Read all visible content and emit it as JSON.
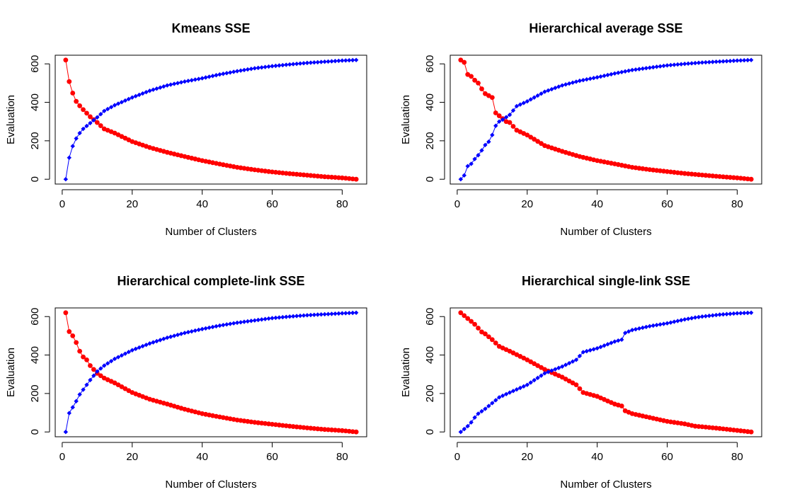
{
  "colors": {
    "series_a": "#ff0000",
    "series_b": "#0000ff",
    "axes": "#000000",
    "background": "#ffffff"
  },
  "chart_data": [
    {
      "type": "line",
      "title": "Kmeans SSE",
      "xlabel": "Number of Clusters",
      "ylabel": "Evaluation",
      "xlim": [
        -2,
        87
      ],
      "ylim": [
        -25,
        645
      ],
      "xticks": [
        0,
        20,
        40,
        60,
        80
      ],
      "yticks": [
        0,
        200,
        400,
        600
      ],
      "grid": false,
      "series": [
        {
          "color": "#ff0000",
          "marker": "circle",
          "kind": "decreasing",
          "anchors": [
            [
              1,
              620
            ],
            [
              2,
              508
            ],
            [
              3,
              448
            ],
            [
              4,
              405
            ],
            [
              5,
              382
            ],
            [
              6,
              362
            ],
            [
              8,
              325
            ],
            [
              10,
              295
            ],
            [
              12,
              262
            ],
            [
              15,
              240
            ],
            [
              20,
              196
            ],
            [
              25,
              165
            ],
            [
              30,
              140
            ],
            [
              35,
              118
            ],
            [
              40,
              97
            ],
            [
              45,
              79
            ],
            [
              50,
              62
            ],
            [
              55,
              49
            ],
            [
              60,
              38
            ],
            [
              65,
              29
            ],
            [
              70,
              21
            ],
            [
              75,
              13
            ],
            [
              80,
              7
            ],
            [
              84,
              0
            ]
          ]
        },
        {
          "color": "#0000ff",
          "marker": "diamond",
          "kind": "increasing",
          "anchors": [
            [
              1,
              0
            ],
            [
              2,
              112
            ],
            [
              3,
              172
            ],
            [
              4,
              212
            ],
            [
              5,
              240
            ],
            [
              6,
              262
            ],
            [
              8,
              292
            ],
            [
              10,
              322
            ],
            [
              12,
              355
            ],
            [
              15,
              385
            ],
            [
              20,
              425
            ],
            [
              25,
              460
            ],
            [
              30,
              488
            ],
            [
              35,
              508
            ],
            [
              40,
              525
            ],
            [
              45,
              545
            ],
            [
              50,
              562
            ],
            [
              55,
              577
            ],
            [
              60,
              588
            ],
            [
              65,
              597
            ],
            [
              70,
              605
            ],
            [
              75,
              611
            ],
            [
              80,
              617
            ],
            [
              84,
              620
            ]
          ]
        }
      ]
    },
    {
      "type": "line",
      "title": "Hierarchical average SSE",
      "xlabel": "Number of Clusters",
      "ylabel": "Evaluation",
      "xlim": [
        -2,
        87
      ],
      "ylim": [
        -25,
        645
      ],
      "xticks": [
        0,
        20,
        40,
        60,
        80
      ],
      "yticks": [
        0,
        200,
        400,
        600
      ],
      "grid": false,
      "series": [
        {
          "color": "#ff0000",
          "marker": "circle",
          "kind": "decreasing",
          "anchors": [
            [
              1,
              620
            ],
            [
              2,
              608
            ],
            [
              3,
              545
            ],
            [
              4,
              535
            ],
            [
              5,
              515
            ],
            [
              6,
              500
            ],
            [
              7,
              470
            ],
            [
              8,
              445
            ],
            [
              9,
              435
            ],
            [
              10,
              425
            ],
            [
              11,
              345
            ],
            [
              12,
              330
            ],
            [
              14,
              300
            ],
            [
              15,
              295
            ],
            [
              17,
              255
            ],
            [
              20,
              230
            ],
            [
              25,
              175
            ],
            [
              30,
              145
            ],
            [
              35,
              118
            ],
            [
              40,
              97
            ],
            [
              45,
              80
            ],
            [
              50,
              62
            ],
            [
              55,
              50
            ],
            [
              60,
              40
            ],
            [
              65,
              30
            ],
            [
              70,
              22
            ],
            [
              75,
              14
            ],
            [
              80,
              7
            ],
            [
              84,
              0
            ]
          ]
        },
        {
          "color": "#0000ff",
          "marker": "diamond",
          "kind": "increasing",
          "anchors": [
            [
              1,
              0
            ],
            [
              2,
              20
            ],
            [
              3,
              68
            ],
            [
              4,
              80
            ],
            [
              5,
              105
            ],
            [
              6,
              125
            ],
            [
              7,
              150
            ],
            [
              8,
              178
            ],
            [
              9,
              195
            ],
            [
              10,
              230
            ],
            [
              11,
              278
            ],
            [
              12,
              300
            ],
            [
              13,
              310
            ],
            [
              15,
              335
            ],
            [
              17,
              380
            ],
            [
              20,
              405
            ],
            [
              25,
              455
            ],
            [
              30,
              488
            ],
            [
              35,
              512
            ],
            [
              40,
              530
            ],
            [
              45,
              550
            ],
            [
              50,
              568
            ],
            [
              55,
              580
            ],
            [
              60,
              592
            ],
            [
              65,
              600
            ],
            [
              70,
              607
            ],
            [
              75,
              612
            ],
            [
              80,
              617
            ],
            [
              84,
              620
            ]
          ]
        }
      ]
    },
    {
      "type": "line",
      "title": "Hierarchical complete-link SSE",
      "xlabel": "Number of Clusters",
      "ylabel": "Evaluation",
      "xlim": [
        -2,
        87
      ],
      "ylim": [
        -25,
        645
      ],
      "xticks": [
        0,
        20,
        40,
        60,
        80
      ],
      "yticks": [
        0,
        200,
        400,
        600
      ],
      "grid": false,
      "series": [
        {
          "color": "#ff0000",
          "marker": "circle",
          "kind": "decreasing",
          "anchors": [
            [
              1,
              620
            ],
            [
              2,
              522
            ],
            [
              3,
              500
            ],
            [
              4,
              465
            ],
            [
              5,
              420
            ],
            [
              6,
              390
            ],
            [
              7,
              375
            ],
            [
              8,
              345
            ],
            [
              10,
              305
            ],
            [
              12,
              280
            ],
            [
              15,
              255
            ],
            [
              20,
              205
            ],
            [
              25,
              170
            ],
            [
              30,
              145
            ],
            [
              35,
              118
            ],
            [
              40,
              95
            ],
            [
              45,
              78
            ],
            [
              50,
              62
            ],
            [
              55,
              50
            ],
            [
              60,
              40
            ],
            [
              65,
              30
            ],
            [
              70,
              21
            ],
            [
              75,
              13
            ],
            [
              80,
              7
            ],
            [
              84,
              0
            ]
          ]
        },
        {
          "color": "#0000ff",
          "marker": "diamond",
          "kind": "increasing",
          "anchors": [
            [
              1,
              0
            ],
            [
              2,
              98
            ],
            [
              3,
              128
            ],
            [
              4,
              160
            ],
            [
              5,
              195
            ],
            [
              6,
              220
            ],
            [
              8,
              270
            ],
            [
              10,
              315
            ],
            [
              12,
              345
            ],
            [
              15,
              380
            ],
            [
              20,
              425
            ],
            [
              25,
              460
            ],
            [
              30,
              490
            ],
            [
              35,
              515
            ],
            [
              40,
              535
            ],
            [
              45,
              553
            ],
            [
              50,
              568
            ],
            [
              55,
              580
            ],
            [
              60,
              592
            ],
            [
              65,
              600
            ],
            [
              70,
              607
            ],
            [
              75,
              612
            ],
            [
              80,
              617
            ],
            [
              84,
              620
            ]
          ]
        }
      ]
    },
    {
      "type": "line",
      "title": "Hierarchical single-link SSE",
      "xlabel": "Number of Clusters",
      "ylabel": "Evaluation",
      "xlim": [
        -2,
        87
      ],
      "ylim": [
        -25,
        645
      ],
      "xticks": [
        0,
        20,
        40,
        60,
        80
      ],
      "yticks": [
        0,
        200,
        400,
        600
      ],
      "grid": false,
      "series": [
        {
          "color": "#ff0000",
          "marker": "circle",
          "kind": "decreasing",
          "anchors": [
            [
              1,
              620
            ],
            [
              2,
              605
            ],
            [
              3,
              590
            ],
            [
              4,
              575
            ],
            [
              5,
              560
            ],
            [
              6,
              540
            ],
            [
              7,
              520
            ],
            [
              8,
              510
            ],
            [
              10,
              480
            ],
            [
              12,
              445
            ],
            [
              15,
              420
            ],
            [
              20,
              375
            ],
            [
              25,
              325
            ],
            [
              30,
              285
            ],
            [
              34,
              245
            ],
            [
              36,
              205
            ],
            [
              38,
              195
            ],
            [
              40,
              185
            ],
            [
              45,
              145
            ],
            [
              47,
              135
            ],
            [
              48,
              110
            ],
            [
              50,
              95
            ],
            [
              55,
              75
            ],
            [
              60,
              55
            ],
            [
              65,
              42
            ],
            [
              68,
              30
            ],
            [
              70,
              27
            ],
            [
              75,
              18
            ],
            [
              80,
              8
            ],
            [
              84,
              0
            ]
          ]
        },
        {
          "color": "#0000ff",
          "marker": "diamond",
          "kind": "increasing",
          "anchors": [
            [
              1,
              0
            ],
            [
              2,
              15
            ],
            [
              3,
              30
            ],
            [
              4,
              50
            ],
            [
              5,
              75
            ],
            [
              6,
              95
            ],
            [
              8,
              120
            ],
            [
              10,
              150
            ],
            [
              12,
              180
            ],
            [
              15,
              205
            ],
            [
              20,
              245
            ],
            [
              25,
              305
            ],
            [
              30,
              340
            ],
            [
              34,
              375
            ],
            [
              36,
              415
            ],
            [
              38,
              425
            ],
            [
              40,
              435
            ],
            [
              45,
              470
            ],
            [
              47,
              480
            ],
            [
              48,
              515
            ],
            [
              50,
              530
            ],
            [
              55,
              550
            ],
            [
              60,
              565
            ],
            [
              65,
              585
            ],
            [
              68,
              595
            ],
            [
              70,
              600
            ],
            [
              75,
              610
            ],
            [
              80,
              617
            ],
            [
              84,
              620
            ]
          ]
        }
      ]
    }
  ]
}
